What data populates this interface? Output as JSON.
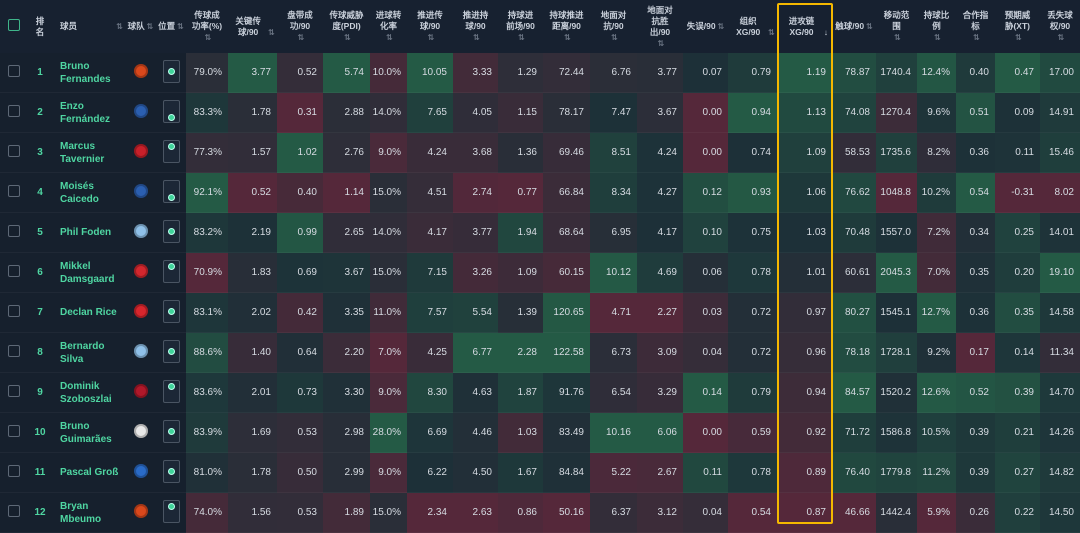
{
  "header": {
    "select_all": "",
    "rank": "排名",
    "player": "球员",
    "team": "球队",
    "position": "位置",
    "stats": [
      "传球成功率(%)",
      "关键传球/90",
      "盘带成功/90",
      "传球威胁度(PDI)",
      "进球转化率",
      "推进传球/90",
      "推进持球/90",
      "持球进前场/90",
      "持球推进距离/90",
      "地面对抗/90",
      "地面对抗胜出/90",
      "失误/90",
      "组织XG/90",
      "进攻链XG/90",
      "触球/90",
      "移动范围",
      "持球比例",
      "合作指标",
      "预期威胁(XT)",
      "丢失球权/90"
    ],
    "sort_icon": "⇅",
    "sorted_desc_icon": "↓",
    "sorted_column_index": 13
  },
  "colors": {
    "highlight": "#f5b800",
    "name": "#4fd6a2",
    "low": "#55283a",
    "mid": "#1d3038",
    "high": "#245a45"
  },
  "rows": [
    {
      "rank": "1",
      "name": "Bruno Fernandes",
      "team_icon": "manchester-united-crest",
      "team_color": "#d9481c",
      "pos_dot": 1,
      "stats": [
        "79.0%",
        "3.77",
        "0.52",
        "5.74",
        "10.0%",
        "10.05",
        "3.33",
        "1.29",
        "72.44",
        "6.76",
        "3.77",
        "0.07",
        "0.79",
        "1.19",
        "78.87",
        "1740.4",
        "12.4%",
        "0.40",
        "0.47",
        "17.00"
      ]
    },
    {
      "rank": "2",
      "name": "Enzo Fernández",
      "team_icon": "chelsea-crest",
      "team_color": "#2b5fb0",
      "pos_dot": 2,
      "stats": [
        "83.3%",
        "1.78",
        "0.31",
        "2.88",
        "14.0%",
        "7.65",
        "4.05",
        "1.15",
        "78.17",
        "7.47",
        "3.67",
        "0.00",
        "0.94",
        "1.13",
        "74.08",
        "1270.4",
        "9.6%",
        "0.51",
        "0.09",
        "14.91"
      ]
    },
    {
      "rank": "3",
      "name": "Marcus Tavernier",
      "team_icon": "bournemouth-crest",
      "team_color": "#c8202a",
      "pos_dot": 0,
      "stats": [
        "77.3%",
        "1.57",
        "1.02",
        "2.76",
        "9.0%",
        "4.24",
        "3.68",
        "1.36",
        "69.46",
        "8.51",
        "4.24",
        "0.00",
        "0.74",
        "1.09",
        "58.53",
        "1735.6",
        "8.2%",
        "0.36",
        "0.11",
        "15.46"
      ]
    },
    {
      "rank": "4",
      "name": "Moisés Caicedo",
      "team_icon": "chelsea-crest",
      "team_color": "#2b5fb0",
      "pos_dot": 2,
      "stats": [
        "92.1%",
        "0.52",
        "0.40",
        "1.14",
        "15.0%",
        "4.51",
        "2.74",
        "0.77",
        "66.84",
        "8.34",
        "4.27",
        "0.12",
        "0.93",
        "1.06",
        "76.62",
        "1048.8",
        "10.2%",
        "0.54",
        "-0.31",
        "8.02"
      ]
    },
    {
      "rank": "5",
      "name": "Phil Foden",
      "team_icon": "manchester-city-crest",
      "team_color": "#8fc0e8",
      "pos_dot": 1,
      "stats": [
        "83.2%",
        "2.19",
        "0.99",
        "2.65",
        "14.0%",
        "4.17",
        "3.77",
        "1.94",
        "68.64",
        "6.95",
        "4.17",
        "0.10",
        "0.75",
        "1.03",
        "70.48",
        "1557.0",
        "7.2%",
        "0.34",
        "0.25",
        "14.01"
      ]
    },
    {
      "rank": "6",
      "name": "Mikkel Damsgaard",
      "team_icon": "brentford-crest",
      "team_color": "#d3272e",
      "pos_dot": 0,
      "stats": [
        "70.9%",
        "1.83",
        "0.69",
        "3.67",
        "15.0%",
        "7.15",
        "3.26",
        "1.09",
        "60.15",
        "10.12",
        "4.69",
        "0.06",
        "0.78",
        "1.01",
        "60.61",
        "2045.3",
        "7.0%",
        "0.35",
        "0.20",
        "19.10"
      ]
    },
    {
      "rank": "7",
      "name": "Declan Rice",
      "team_icon": "arsenal-crest",
      "team_color": "#d8262d",
      "pos_dot": 1,
      "stats": [
        "83.1%",
        "2.02",
        "0.42",
        "3.35",
        "11.0%",
        "7.57",
        "5.54",
        "1.39",
        "120.65",
        "4.71",
        "2.27",
        "0.03",
        "0.72",
        "0.97",
        "80.27",
        "1545.1",
        "12.7%",
        "0.36",
        "0.35",
        "14.58"
      ]
    },
    {
      "rank": "8",
      "name": "Bernardo Silva",
      "team_icon": "manchester-city-crest",
      "team_color": "#8fc0e8",
      "pos_dot": 1,
      "stats": [
        "88.6%",
        "1.40",
        "0.64",
        "2.20",
        "7.0%",
        "4.25",
        "6.77",
        "2.28",
        "122.58",
        "6.73",
        "3.09",
        "0.04",
        "0.72",
        "0.96",
        "78.18",
        "1728.1",
        "9.2%",
        "0.17",
        "0.14",
        "11.34"
      ]
    },
    {
      "rank": "9",
      "name": "Dominik Szoboszlai",
      "team_icon": "liverpool-crest",
      "team_color": "#b0182a",
      "pos_dot": 0,
      "stats": [
        "83.6%",
        "2.01",
        "0.73",
        "3.30",
        "9.0%",
        "8.30",
        "4.63",
        "1.87",
        "91.76",
        "6.54",
        "3.29",
        "0.14",
        "0.79",
        "0.94",
        "84.57",
        "1520.2",
        "12.6%",
        "0.52",
        "0.39",
        "14.70"
      ]
    },
    {
      "rank": "10",
      "name": "Bruno Guimarães",
      "team_icon": "newcastle-crest",
      "team_color": "#e8e8e8",
      "pos_dot": 1,
      "stats": [
        "83.9%",
        "1.69",
        "0.53",
        "2.98",
        "28.0%",
        "6.69",
        "4.46",
        "1.03",
        "83.49",
        "10.16",
        "6.06",
        "0.00",
        "0.59",
        "0.92",
        "71.72",
        "1586.8",
        "10.5%",
        "0.39",
        "0.21",
        "14.26"
      ]
    },
    {
      "rank": "11",
      "name": "Pascal Groß",
      "team_icon": "brighton-crest",
      "team_color": "#2a6bc7",
      "pos_dot": 1,
      "stats": [
        "81.0%",
        "1.78",
        "0.50",
        "2.99",
        "9.0%",
        "6.22",
        "4.50",
        "1.67",
        "84.84",
        "5.22",
        "2.67",
        "0.11",
        "0.78",
        "0.89",
        "76.40",
        "1779.8",
        "11.2%",
        "0.39",
        "0.27",
        "14.82"
      ]
    },
    {
      "rank": "12",
      "name": "Bryan Mbeumo",
      "team_icon": "manchester-united-crest",
      "team_color": "#d9481c",
      "pos_dot": 0,
      "stats": [
        "74.0%",
        "1.56",
        "0.53",
        "1.89",
        "15.0%",
        "2.34",
        "2.63",
        "0.86",
        "50.16",
        "6.37",
        "3.12",
        "0.04",
        "0.54",
        "0.87",
        "46.66",
        "1442.4",
        "5.9%",
        "0.26",
        "0.22",
        "14.50"
      ]
    }
  ]
}
